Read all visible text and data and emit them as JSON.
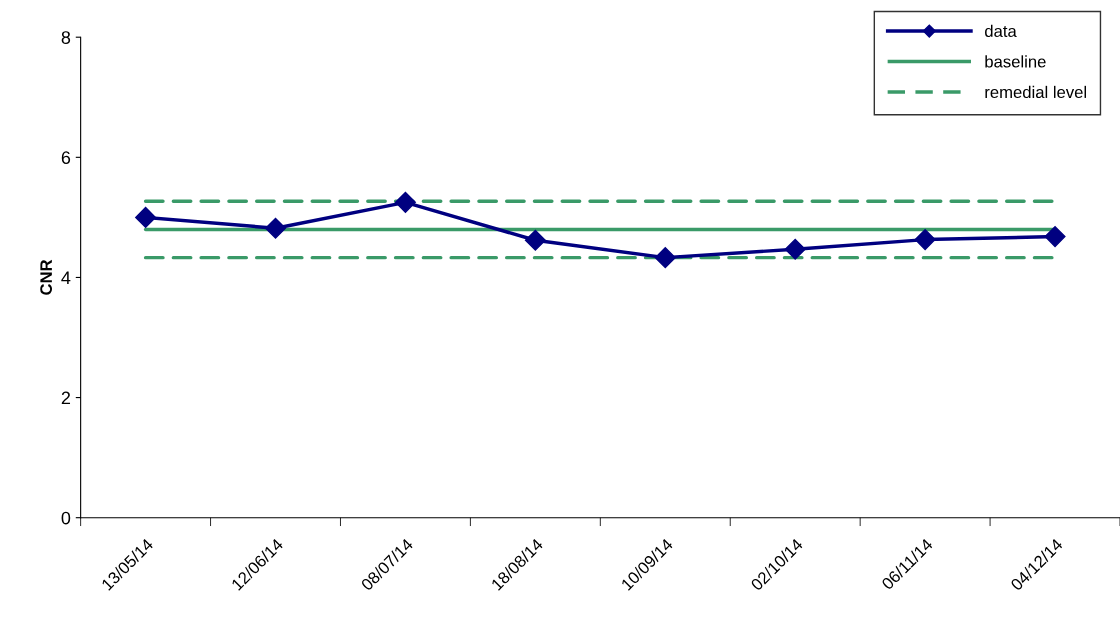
{
  "chart_data": {
    "type": "line",
    "ylabel": "CNR",
    "categories": [
      "13/05/14",
      "12/06/14",
      "08/07/14",
      "18/08/14",
      "10/09/14",
      "02/10/14",
      "06/11/14",
      "04/12/14"
    ],
    "series": [
      {
        "name": "data",
        "color": "#000080",
        "values": [
          5.0,
          4.82,
          5.25,
          4.62,
          4.33,
          4.47,
          4.63,
          4.68
        ]
      }
    ],
    "ref_lines": [
      {
        "axis": "y",
        "value": 4.8,
        "label": "baseline",
        "color": "#3a9a68",
        "line_style": "solid"
      },
      {
        "axis": "y",
        "value": 5.27,
        "label": "remedial level",
        "color": "#3a9a68",
        "line_style": "dashed"
      },
      {
        "axis": "y",
        "value": 4.33,
        "color": "#3a9a68",
        "line_style": "dashed"
      }
    ],
    "ylim": [
      0,
      8
    ],
    "yticks": [
      0,
      2,
      4,
      6,
      8
    ],
    "grid": false,
    "legend": "top right",
    "marker": "diamond",
    "line_style": "solid"
  }
}
